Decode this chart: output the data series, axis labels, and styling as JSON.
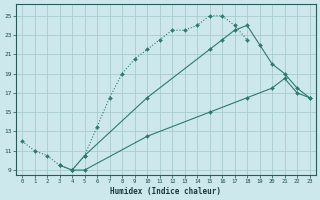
{
  "xlabel": "Humidex (Indice chaleur)",
  "bg_color": "#cce8ec",
  "grid_color": "#aacccc",
  "line_color": "#2d7a6e",
  "xlim": [
    -0.5,
    23.5
  ],
  "ylim": [
    8.5,
    26.2
  ],
  "xticks": [
    0,
    1,
    2,
    3,
    4,
    5,
    6,
    7,
    8,
    9,
    10,
    11,
    12,
    13,
    14,
    15,
    16,
    17,
    18,
    19,
    20,
    21,
    22,
    23
  ],
  "yticks": [
    9,
    11,
    13,
    15,
    17,
    19,
    21,
    23,
    25
  ],
  "curve1_x": [
    0,
    1,
    2,
    3,
    4,
    5,
    6,
    7,
    8,
    9,
    10,
    11,
    12,
    13,
    14,
    15,
    16,
    17,
    18
  ],
  "curve1_y": [
    12,
    11,
    10.5,
    9.5,
    9,
    10.5,
    13.5,
    16.5,
    19.0,
    20.5,
    21.5,
    22.5,
    23.5,
    23.5,
    24.0,
    25.0,
    25.0,
    24.0,
    22.5
  ],
  "curve2_x": [
    4,
    5,
    10,
    15,
    16,
    17,
    18,
    19,
    20,
    21,
    22,
    23
  ],
  "curve2_y": [
    9.0,
    10.5,
    16.5,
    21.5,
    22.5,
    23.5,
    24.0,
    22.0,
    20.0,
    19.0,
    17.5,
    16.5
  ],
  "curve3_x": [
    3,
    4,
    5,
    10,
    15,
    18,
    20,
    21,
    22,
    23
  ],
  "curve3_y": [
    9.5,
    9.0,
    9.0,
    12.5,
    15.0,
    16.5,
    17.5,
    18.5,
    17.0,
    16.5
  ]
}
